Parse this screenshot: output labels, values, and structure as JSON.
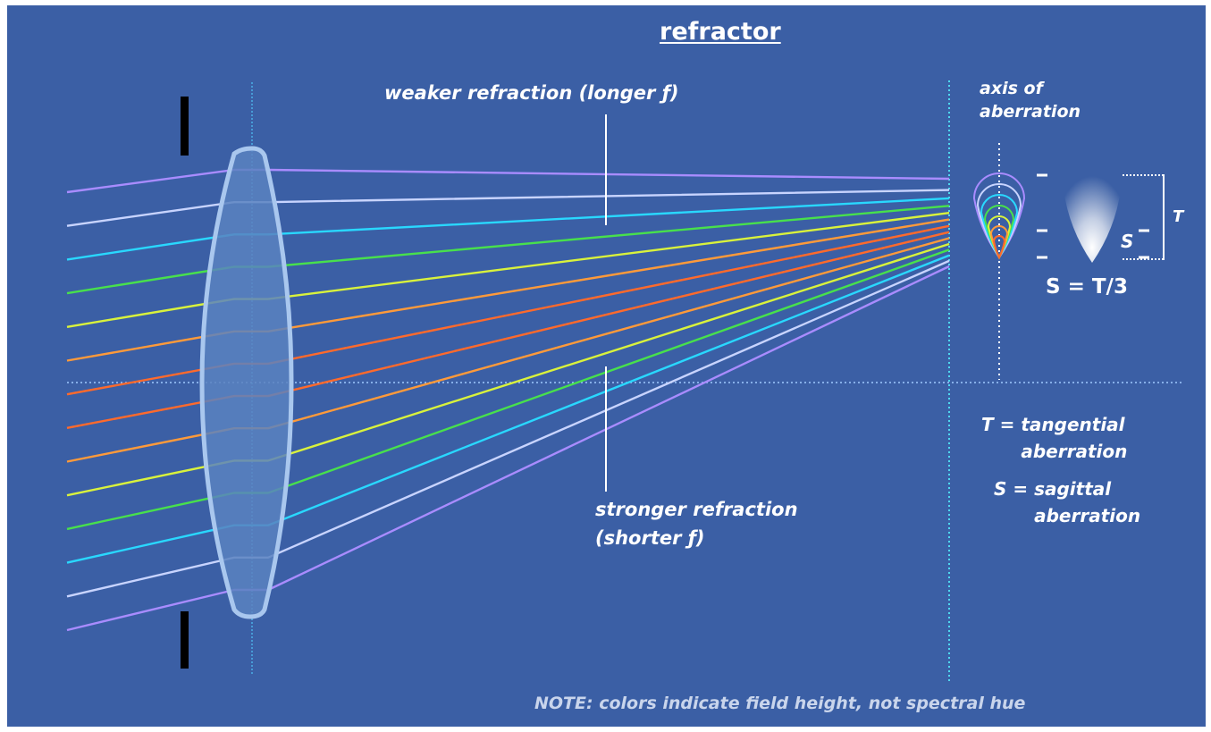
{
  "title": "refractor",
  "labels": {
    "weaker": "weaker refraction (longer ƒ)",
    "stronger_line1": "stronger refraction",
    "stronger_line2": "(shorter ƒ)",
    "axis_line1": "axis of",
    "axis_line2": "aberration",
    "relation": "S = T/3",
    "t_marker": "T",
    "s_marker": "S"
  },
  "legend": {
    "t_symbol": "T =",
    "t_line1": "tangential",
    "t_line2": "aberration",
    "s_symbol": "S =",
    "s_line1": "sagittal",
    "s_line2": "aberration"
  },
  "note": "NOTE: colors indicate field height, not spectral hue",
  "colors": {
    "background": "#3b5fa5",
    "lens": "#5a83bf",
    "ray_colors": [
      "#a98cff",
      "#c8d4ff",
      "#29d8ff",
      "#48e04c",
      "#d9f23c",
      "#ff9a3a",
      "#ff6a2c",
      "#ff6a2c",
      "#ff9a3a",
      "#d9f23c",
      "#48e04c",
      "#29d8ff",
      "#c8d4ff",
      "#a98cff"
    ]
  }
}
